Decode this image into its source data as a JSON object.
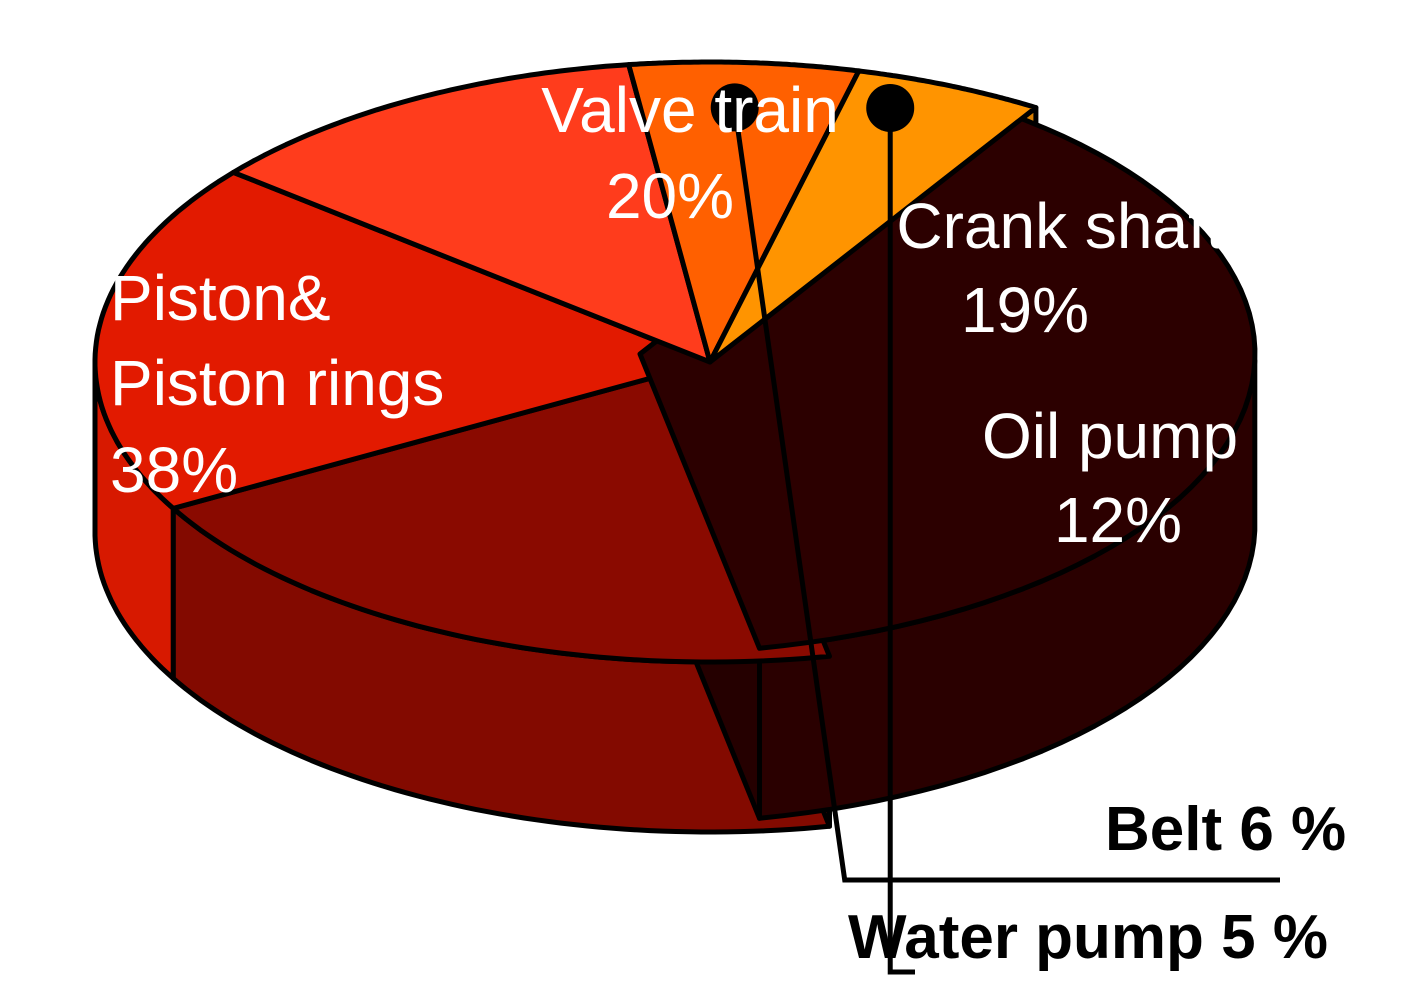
{
  "chart_data": {
    "type": "pie",
    "style": "3d-exploded",
    "slices": [
      {
        "name": "Piston&",
        "name2": "Piston rings",
        "value_label": "38%",
        "value": 38,
        "color": "#2c0000"
      },
      {
        "name": "Valve train",
        "value_label": "20%",
        "value": 20,
        "color": "#8a0a00"
      },
      {
        "name": "Crank shaft",
        "value_label": "19%",
        "value": 19,
        "color": "#e21a00"
      },
      {
        "name": "Oil pump",
        "value_label": "12%",
        "value": 12,
        "color": "#ff3c1c"
      },
      {
        "name": "Belt",
        "value_label": "6 %",
        "value": 6,
        "color": "#ff6000"
      },
      {
        "name": "Water pump",
        "value_label": "5 %",
        "value": 5,
        "color": "#ff9400"
      }
    ],
    "callouts": [
      "Belt 6 %",
      "Water pump 5 %"
    ]
  }
}
